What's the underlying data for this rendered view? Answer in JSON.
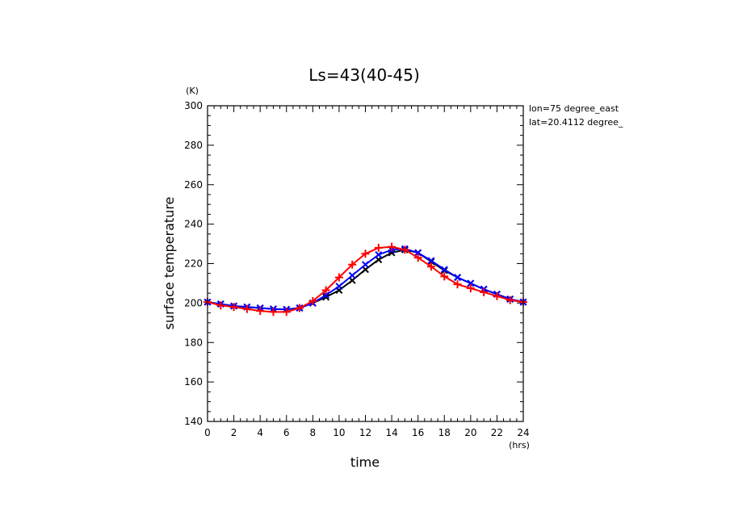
{
  "chart_data": {
    "type": "line",
    "title": "Ls=43(40-45)",
    "xlabel": "time",
    "ylabel": "surface temperature",
    "x_unit": "(hrs)",
    "y_unit": "(K)",
    "annotations": [
      "lon=75 degree_east",
      "lat=20.4112 degree_"
    ],
    "xlim": [
      0,
      24
    ],
    "ylim": [
      140,
      300
    ],
    "x_ticks": [
      0,
      2,
      4,
      6,
      8,
      10,
      12,
      14,
      16,
      18,
      20,
      22,
      24
    ],
    "y_ticks": [
      140,
      160,
      180,
      200,
      220,
      240,
      260,
      280,
      300
    ],
    "x": [
      0,
      1,
      2,
      3,
      4,
      5,
      6,
      7,
      8,
      9,
      10,
      11,
      12,
      13,
      14,
      15,
      16,
      17,
      18,
      19,
      20,
      21,
      22,
      23,
      24
    ],
    "grid": false,
    "series": [
      {
        "color": "#000000",
        "marker": "x",
        "values": [
          200.5,
          199.5,
          198.5,
          198.0,
          197.5,
          197.0,
          196.8,
          197.5,
          200.0,
          203.0,
          206.5,
          211.5,
          217.0,
          222.0,
          225.5,
          227.0,
          225.5,
          221.0,
          216.5,
          213.0,
          210.0,
          207.0,
          204.5,
          202.0,
          200.5
        ]
      },
      {
        "color": "#0000ff",
        "marker": "x",
        "values": [
          200.5,
          199.5,
          198.5,
          198.0,
          197.5,
          197.0,
          196.8,
          197.5,
          200.0,
          204.0,
          208.5,
          214.0,
          219.5,
          224.5,
          227.0,
          227.5,
          225.5,
          221.5,
          217.0,
          213.0,
          210.0,
          207.0,
          204.5,
          202.0,
          200.5
        ]
      },
      {
        "color": "#ff0000",
        "marker": "+",
        "values": [
          200.5,
          198.8,
          198.0,
          197.0,
          196.0,
          195.5,
          195.5,
          197.5,
          201.0,
          206.5,
          213.0,
          219.5,
          225.0,
          228.0,
          228.5,
          227.0,
          223.0,
          218.5,
          213.5,
          209.5,
          207.5,
          205.5,
          203.5,
          201.5,
          200.5
        ]
      }
    ]
  }
}
